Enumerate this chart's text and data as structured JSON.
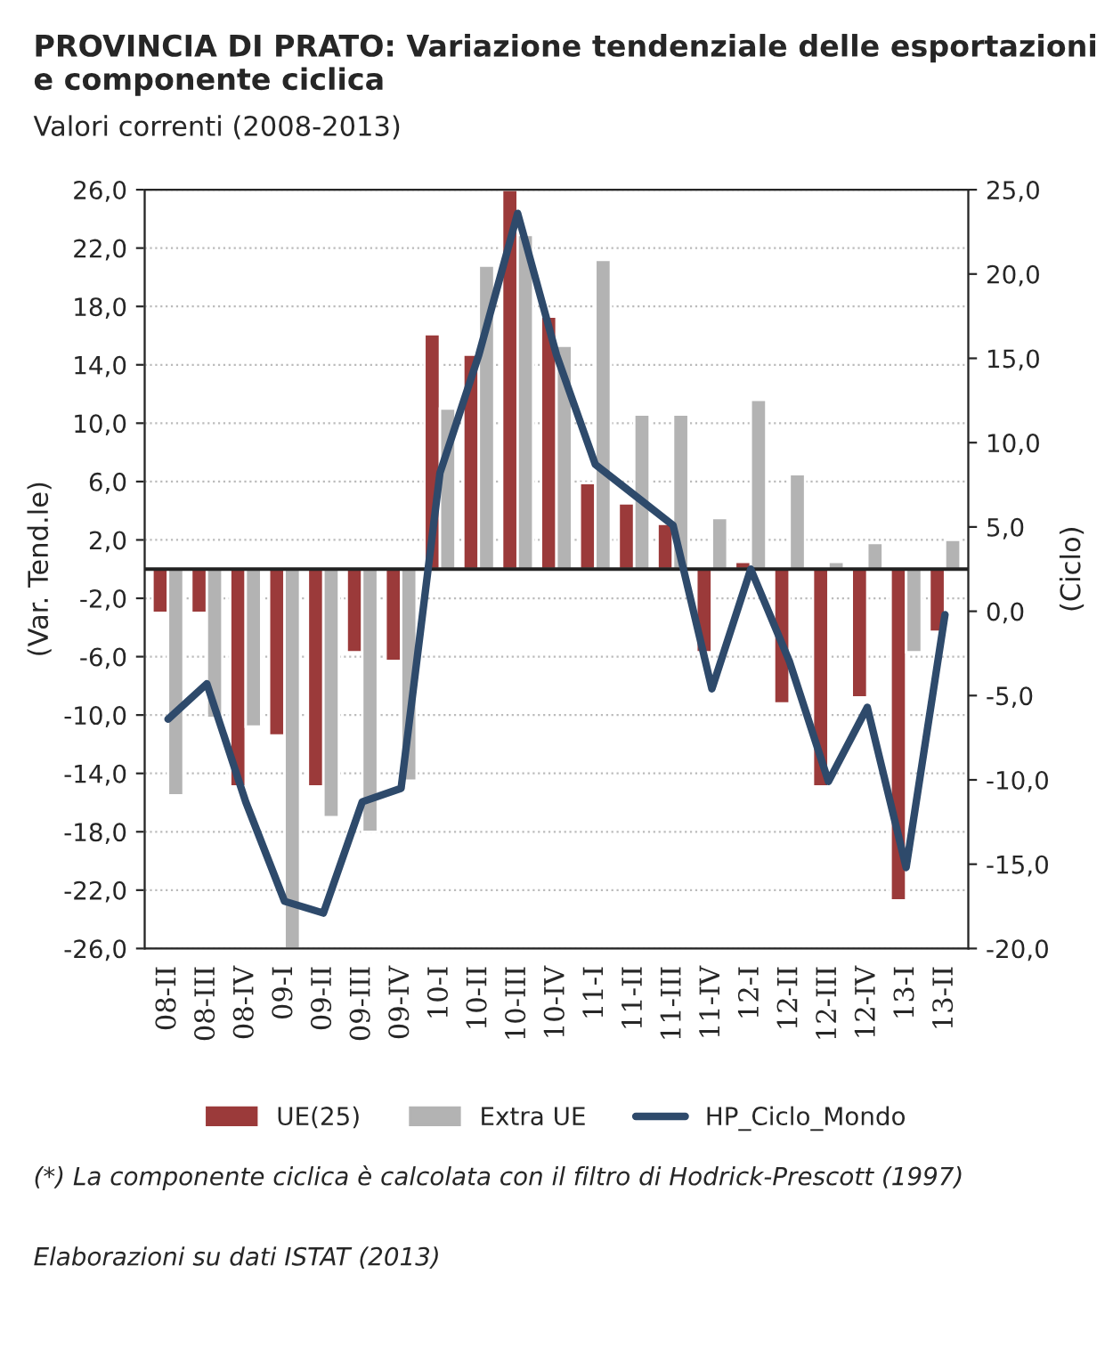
{
  "chart_data": {
    "type": "bar",
    "title": "PROVINCIA DI PRATO: Variazione tendenziale delle esportazioni e componente ciclica",
    "subtitle": "Valori correnti (2008-2013)",
    "ylabel": "(Var. Tend.le)",
    "y2label": "(Ciclo)",
    "categories": [
      "08-II",
      "08-III",
      "08-IV",
      "09-I",
      "09-II",
      "09-III",
      "09-IV",
      "10-I",
      "10-II",
      "10-III",
      "10-IV",
      "11-I",
      "11-II",
      "11-III",
      "11-IV",
      "12-I",
      "12-II",
      "12-III",
      "12-IV",
      "13-I",
      "13-II"
    ],
    "series": [
      {
        "name": "UE(25)",
        "color": "#9b3a3a",
        "values": [
          -3.0,
          -3.0,
          -14.9,
          -11.4,
          -14.9,
          -5.7,
          -6.3,
          16.1,
          14.7,
          26.0,
          17.3,
          5.9,
          4.5,
          3.1,
          -5.7,
          0.5,
          -9.2,
          -14.9,
          -8.8,
          -22.7,
          -4.3
        ]
      },
      {
        "name": "Extra UE",
        "color": "#b3b3b3",
        "values": [
          -15.5,
          -10.2,
          -10.8,
          -26.0,
          -17.0,
          -18.0,
          -14.5,
          11.0,
          20.8,
          22.9,
          15.3,
          21.2,
          10.6,
          10.6,
          3.5,
          11.6,
          6.5,
          0.5,
          1.8,
          -5.7,
          2.0
        ]
      },
      {
        "name": "HP_Ciclo_Mondo",
        "type": "line",
        "axis": "y2",
        "color": "#2e4a6b",
        "values": [
          -6.4,
          -4.3,
          -11.3,
          -17.2,
          -17.9,
          -11.3,
          -10.5,
          8.2,
          15.2,
          23.6,
          15.2,
          8.7,
          6.9,
          5.1,
          -4.6,
          2.5,
          -3.0,
          -10.1,
          -5.7,
          -15.2,
          -0.2
        ]
      }
    ],
    "ylim": [
      -26,
      26
    ],
    "yticks": [
      {
        "value": -26,
        "label": "-26,0"
      },
      {
        "value": -22,
        "label": "-22,0"
      },
      {
        "value": -18,
        "label": "-18,0"
      },
      {
        "value": -14,
        "label": "-14,0"
      },
      {
        "value": -10,
        "label": "-10,0"
      },
      {
        "value": -6,
        "label": "-6,0"
      },
      {
        "value": -2,
        "label": "-2,0"
      },
      {
        "value": 2,
        "label": "2,0"
      },
      {
        "value": 6,
        "label": "6,0"
      },
      {
        "value": 10,
        "label": "10,0"
      },
      {
        "value": 14,
        "label": "14,0"
      },
      {
        "value": 18,
        "label": "18,0"
      },
      {
        "value": 22,
        "label": "22,0"
      },
      {
        "value": 26,
        "label": "26,0"
      }
    ],
    "y2lim": [
      -20,
      25
    ],
    "y2ticks": [
      {
        "value": -20,
        "label": "-20,0"
      },
      {
        "value": -15,
        "label": "-15,0"
      },
      {
        "value": -10,
        "label": "-10,0"
      },
      {
        "value": -5,
        "label": "-5,0"
      },
      {
        "value": 0,
        "label": "0,0"
      },
      {
        "value": 5,
        "label": "5,0"
      },
      {
        "value": 10,
        "label": "10,0"
      },
      {
        "value": 15,
        "label": "15,0"
      },
      {
        "value": 20,
        "label": "20,0"
      },
      {
        "value": 25,
        "label": "25,0"
      }
    ],
    "grid": "y",
    "legend": "bottom",
    "annotations": [
      "(*) La componente ciclica è calcolata con il filtro di Hodrick-Prescott (1997)",
      "Elaborazioni su dati ISTAT (2013)"
    ]
  }
}
